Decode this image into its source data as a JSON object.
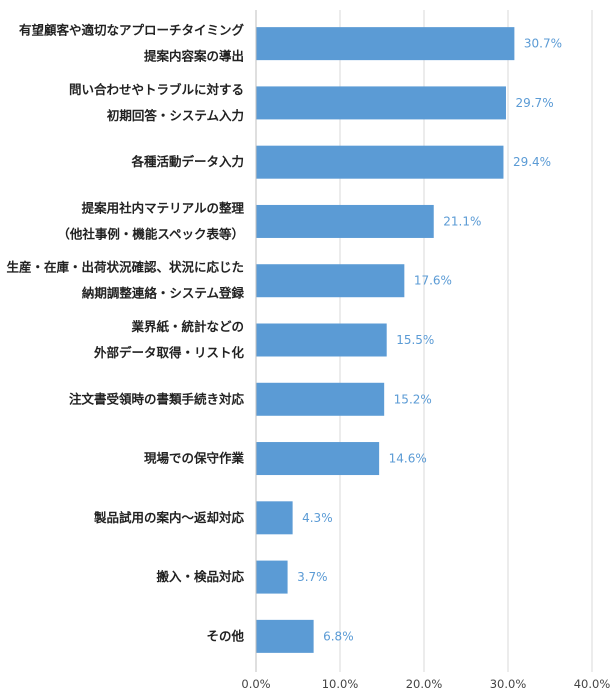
{
  "chart_data": {
    "type": "bar",
    "orientation": "horizontal",
    "categories": [
      [
        "有望顧客や適切なアプローチタイミング",
        "提案内容案の導出"
      ],
      [
        "問い合わせやトラブルに対する",
        "初期回答・システム入力"
      ],
      [
        "各種活動データ入力"
      ],
      [
        "提案用社内マテリアルの整理",
        "（他社事例・機能スペック表等）"
      ],
      [
        "生産・在庫・出荷状況確認、状況に応じた",
        "納期調整連絡・システム登録"
      ],
      [
        "業界紙・統計などの",
        "外部データ取得・リスト化"
      ],
      [
        "注文書受領時の書類手続き対応"
      ],
      [
        "現場での保守作業"
      ],
      [
        "製品試用の案内～返却対応"
      ],
      [
        "搬入・検品対応"
      ],
      [
        "その他"
      ]
    ],
    "values": [
      30.7,
      29.7,
      29.4,
      21.1,
      17.6,
      15.5,
      15.2,
      14.6,
      4.3,
      3.7,
      6.8
    ],
    "value_labels": [
      "30.7%",
      "29.7%",
      "29.4%",
      "21.1%",
      "17.6%",
      "15.5%",
      "15.2%",
      "14.6%",
      "4.3%",
      "3.7%",
      "6.8%"
    ],
    "xlim": [
      0,
      40
    ],
    "xticks": [
      0,
      10,
      20,
      30,
      40
    ],
    "xtick_labels": [
      "0.0%",
      "10.0%",
      "20.0%",
      "30.0%",
      "40.0%"
    ],
    "grid": true,
    "bar_color": "#5b9bd5",
    "label_color": "#5b9bd5"
  }
}
